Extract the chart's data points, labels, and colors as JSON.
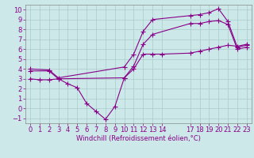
{
  "bg_color": "#cce8e8",
  "grid_color": "#aacccc",
  "line_color": "#880088",
  "xlabel": "Windchill (Refroidissement éolien,°C)",
  "xlim": [
    -0.5,
    23.5
  ],
  "ylim": [
    -1.5,
    10.5
  ],
  "xticks": [
    0,
    1,
    2,
    3,
    4,
    5,
    6,
    7,
    8,
    9,
    10,
    11,
    12,
    13,
    14,
    17,
    18,
    19,
    20,
    21,
    22,
    23
  ],
  "yticks": [
    -1,
    0,
    1,
    2,
    3,
    4,
    5,
    6,
    7,
    8,
    9,
    10
  ],
  "line1_x": [
    0,
    2,
    3,
    10,
    11,
    12,
    13,
    17,
    18,
    19,
    20,
    21,
    22,
    23
  ],
  "line1_y": [
    4.0,
    3.9,
    3.1,
    4.2,
    5.5,
    7.8,
    9.0,
    9.4,
    9.5,
    9.7,
    10.1,
    8.8,
    6.2,
    6.4
  ],
  "line2_x": [
    0,
    2,
    3,
    10,
    11,
    12,
    13,
    17,
    18,
    19,
    20,
    21,
    22,
    23
  ],
  "line2_y": [
    3.8,
    3.8,
    3.0,
    3.1,
    4.3,
    6.5,
    7.5,
    8.6,
    8.6,
    8.8,
    8.9,
    8.5,
    6.0,
    6.2
  ],
  "line3_x": [
    0,
    1,
    2,
    3,
    4,
    5,
    6,
    7,
    8,
    9,
    10,
    11,
    12,
    13,
    14,
    17,
    18,
    19,
    20,
    21,
    22,
    23
  ],
  "line3_y": [
    3.0,
    2.9,
    2.9,
    3.0,
    2.5,
    2.1,
    0.5,
    -0.3,
    -1.1,
    0.2,
    3.1,
    4.0,
    5.5,
    5.5,
    5.5,
    5.6,
    5.8,
    6.0,
    6.2,
    6.4,
    6.3,
    6.5
  ],
  "tick_fontsize": 6,
  "xlabel_fontsize": 6
}
